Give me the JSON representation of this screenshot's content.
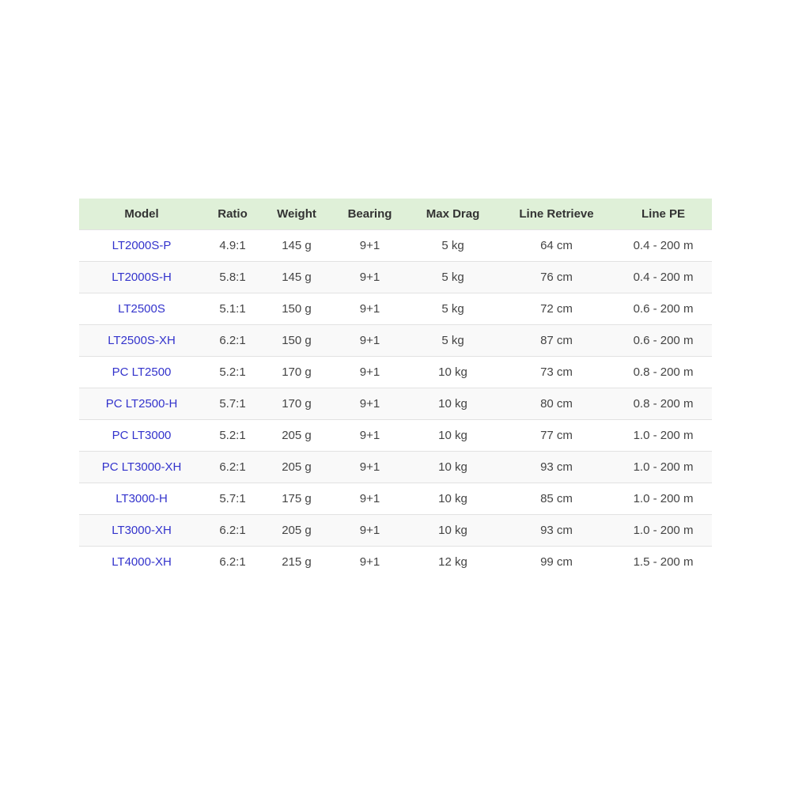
{
  "table": {
    "headers": [
      "Model",
      "Ratio",
      "Weight",
      "Bearing",
      "Max Drag",
      "Line Retrieve",
      "Line PE"
    ],
    "rows": [
      [
        "LT2000S-P",
        "4.9:1",
        "145 g",
        "9+1",
        "5 kg",
        "64 cm",
        "0.4 - 200 m"
      ],
      [
        "LT2000S-H",
        "5.8:1",
        "145 g",
        "9+1",
        "5 kg",
        "76 cm",
        "0.4 - 200 m"
      ],
      [
        "LT2500S",
        "5.1:1",
        "150 g",
        "9+1",
        "5 kg",
        "72 cm",
        "0.6 - 200 m"
      ],
      [
        "LT2500S-XH",
        "6.2:1",
        "150 g",
        "9+1",
        "5 kg",
        "87 cm",
        "0.6 - 200 m"
      ],
      [
        "PC LT2500",
        "5.2:1",
        "170 g",
        "9+1",
        "10 kg",
        "73 cm",
        "0.8 - 200 m"
      ],
      [
        "PC LT2500-H",
        "5.7:1",
        "170 g",
        "9+1",
        "10 kg",
        "80 cm",
        "0.8 - 200 m"
      ],
      [
        "PC LT3000",
        "5.2:1",
        "205 g",
        "9+1",
        "10 kg",
        "77 cm",
        "1.0 - 200 m"
      ],
      [
        "PC LT3000-XH",
        "6.2:1",
        "205 g",
        "9+1",
        "10 kg",
        "93 cm",
        "1.0 - 200 m"
      ],
      [
        "LT3000-H",
        "5.7:1",
        "175 g",
        "9+1",
        "10 kg",
        "85 cm",
        "1.0 - 200 m"
      ],
      [
        "LT3000-XH",
        "6.2:1",
        "205 g",
        "9+1",
        "10 kg",
        "93 cm",
        "1.0 - 200 m"
      ],
      [
        "LT4000-XH",
        "6.2:1",
        "215 g",
        "9+1",
        "12 kg",
        "99 cm",
        "1.5 - 200 m"
      ]
    ]
  },
  "colors": {
    "header_bg": "#dff0d8",
    "model_link": "#3333cc",
    "stripe": "#f9f9f9"
  }
}
